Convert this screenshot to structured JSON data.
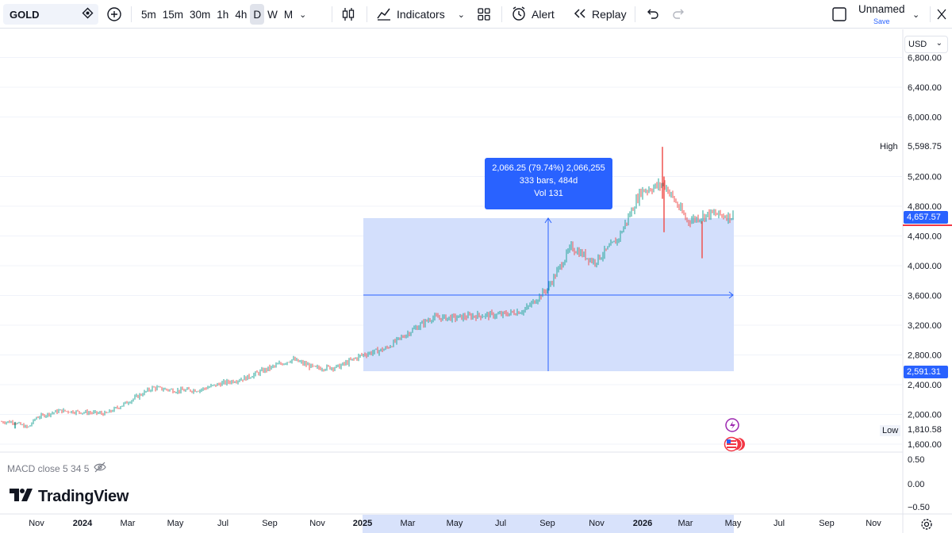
{
  "toolbar": {
    "symbol": "GOLD",
    "intervals": [
      "5m",
      "15m",
      "30m",
      "1h",
      "4h",
      "D",
      "W",
      "M"
    ],
    "active_interval": "D",
    "indicators_label": "Indicators",
    "alert_label": "Alert",
    "replay_label": "Replay",
    "layout_name": "Unnamed",
    "save_label": "Save"
  },
  "currency": "USD",
  "measure_tooltip": {
    "line1": "2,066.25 (79.74%) 2,066,255",
    "line2": "333 bars, 484d",
    "line3": "Vol 131"
  },
  "price_axis": {
    "ticks": [
      "6,800.00",
      "6,400.00",
      "6,000.00",
      "5,200.00",
      "4,800.00",
      "4,400.00",
      "4,000.00",
      "3,600.00",
      "3,200.00",
      "2,800.00",
      "2,400.00",
      "2,000.00",
      "1,600.00"
    ],
    "high_label": "High",
    "high_value": "5,598.75",
    "low_label": "Low",
    "low_value": "1,810.58",
    "current_price": "4,657.57",
    "range_start_price": "2,591.31"
  },
  "macd_pane": {
    "label": "MACD close 5 34 5",
    "ticks": [
      "0.50",
      "0.00",
      "−0.50"
    ]
  },
  "brand": "TradingView",
  "time_axis": {
    "labels": [
      "Nov",
      "2024",
      "Mar",
      "May",
      "Jul",
      "Sep",
      "Nov",
      "2025",
      "Mar",
      "May",
      "Jul",
      "Sep",
      "Nov",
      "2026",
      "Mar",
      "May",
      "Jul",
      "Sep",
      "Nov"
    ]
  },
  "colors": {
    "up": "#26a69a",
    "down": "#ef5350",
    "accent": "#2962ff",
    "range_fill": "#d1ddfc"
  },
  "chart_data": {
    "type": "candlestick",
    "symbol": "GOLD",
    "interval": "D",
    "currency": "USD",
    "ylim": [
      1600,
      6800
    ],
    "close_path": [
      [
        "2023-10",
        1900
      ],
      [
        "2023-10-20",
        1820
      ],
      [
        "2023-11",
        1960
      ],
      [
        "2023-12",
        2050
      ],
      [
        "2024-01",
        2030
      ],
      [
        "2024-02",
        2010
      ],
      [
        "2024-03",
        2180
      ],
      [
        "2024-04",
        2360
      ],
      [
        "2024-05",
        2320
      ],
      [
        "2024-06",
        2330
      ],
      [
        "2024-07",
        2420
      ],
      [
        "2024-08",
        2490
      ],
      [
        "2024-09",
        2620
      ],
      [
        "2024-10",
        2740
      ],
      [
        "2024-11",
        2620
      ],
      [
        "2024-12",
        2640
      ],
      [
        "2025-01",
        2800
      ],
      [
        "2025-02",
        2880
      ],
      [
        "2025-03",
        3100
      ],
      [
        "2025-04",
        3300
      ],
      [
        "2025-05",
        3300
      ],
      [
        "2025-06",
        3330
      ],
      [
        "2025-07",
        3340
      ],
      [
        "2025-08",
        3400
      ],
      [
        "2025-09",
        3700
      ],
      [
        "2025-10",
        4250
      ],
      [
        "2025-11",
        4050
      ],
      [
        "2025-12",
        4350
      ],
      [
        "2026-01",
        5000
      ],
      [
        "2026-02",
        5100
      ],
      [
        "2026-03",
        4600
      ],
      [
        "2026-04",
        4700
      ],
      [
        "2026-05",
        4657.57
      ]
    ],
    "high": 5598.75,
    "low": 1810.58,
    "last": 4657.57,
    "measure": {
      "start_price": 2591.31,
      "end_price": 4657.57,
      "change": 2066.25,
      "change_pct": 79.74,
      "bars": 333,
      "days": 484
    }
  }
}
